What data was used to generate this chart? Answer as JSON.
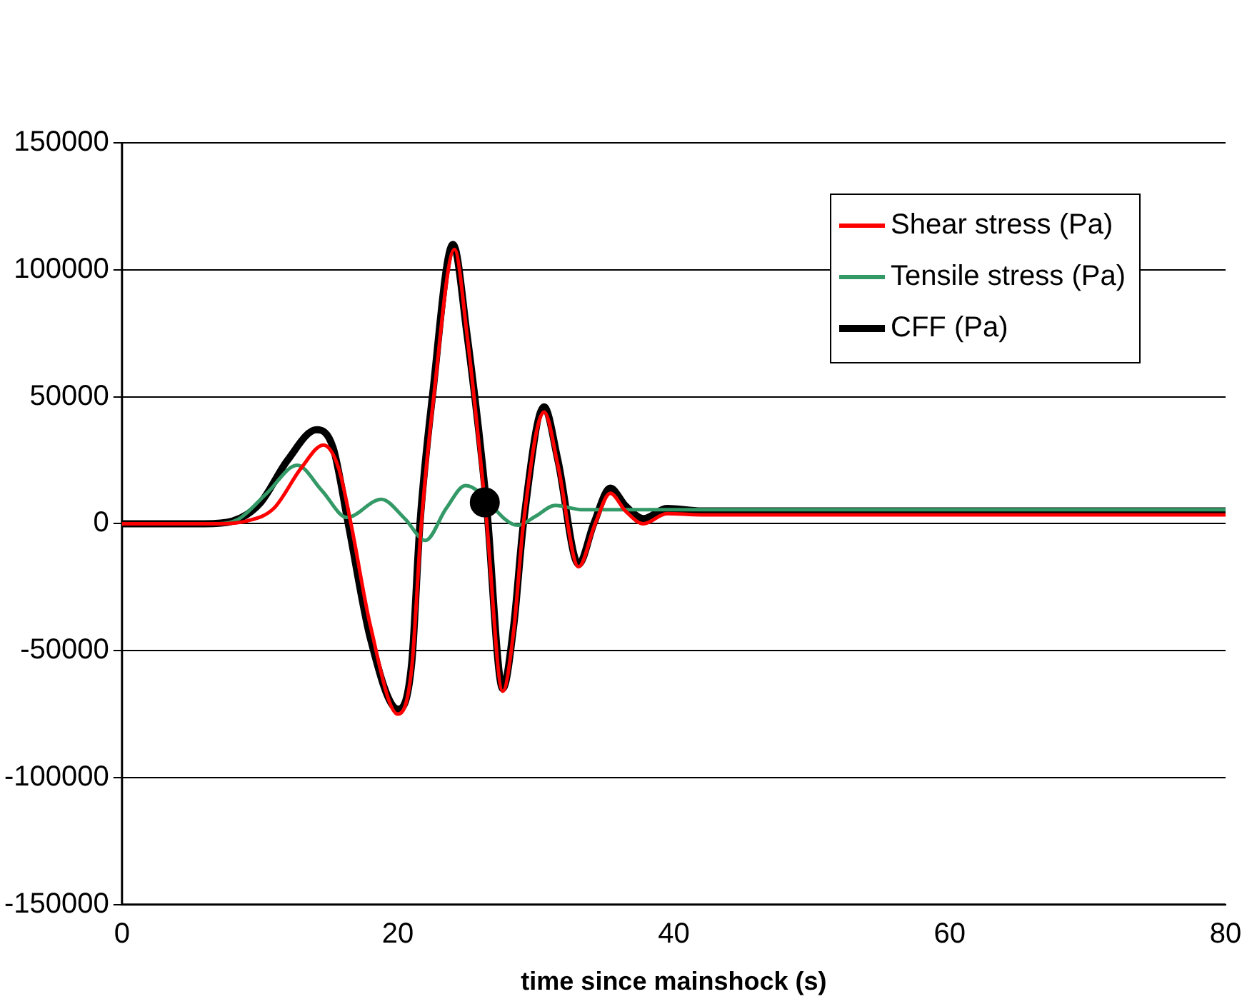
{
  "chart_data": {
    "type": "line",
    "xlabel": "time since mainshock (s)",
    "xlim": [
      0,
      80
    ],
    "xticks": [
      0,
      20,
      40,
      60,
      80
    ],
    "ylim": [
      -150000,
      150000
    ],
    "yticks": [
      -150000,
      -100000,
      -50000,
      0,
      50000,
      100000,
      150000
    ],
    "grid": "y",
    "legend": "top right",
    "marker": "none",
    "line_style": "solid",
    "series": [
      {
        "name": "Shear stress (Pa)",
        "color": "#ff0000",
        "x": [
          0,
          7,
          9,
          11,
          13,
          14.6,
          15.7,
          16.6,
          18,
          20,
          21,
          21.7,
          22.6,
          24.1,
          25,
          26.4,
          27.6,
          28.4,
          29.1,
          30.6,
          31.6,
          33.1,
          34.3,
          35.4,
          36.5,
          37.8,
          39.5,
          42,
          80
        ],
        "values": [
          0,
          0,
          1000,
          6000,
          22000,
          31000,
          22000,
          0,
          -40000,
          -75000,
          -57000,
          0,
          50000,
          108000,
          75000,
          3000,
          -66000,
          -42000,
          0,
          44000,
          23000,
          -17000,
          0,
          12000,
          5000,
          0,
          4000,
          3500,
          3500
        ]
      },
      {
        "name": "Tensile stress (Pa)",
        "color": "#339966",
        "x": [
          0,
          7,
          8.5,
          10.5,
          12.7,
          14.5,
          16.3,
          18.8,
          20.5,
          22,
          23.5,
          24.9,
          26.3,
          28.7,
          30,
          31.4,
          33.4,
          80
        ],
        "values": [
          0,
          0,
          2000,
          12000,
          23000,
          13000,
          2500,
          9600,
          2000,
          -6600,
          6000,
          15000,
          null,
          -600,
          3000,
          7200,
          5500,
          5500
        ]
      },
      {
        "name": "CFF (Pa)",
        "color": "#000000",
        "x": [
          0,
          6,
          8,
          10,
          12,
          14.1,
          15.3,
          16.4,
          18,
          20,
          21,
          21.6,
          22.5,
          24,
          25,
          26.4,
          27.6,
          28.4,
          29.1,
          30.6,
          31.6,
          33.1,
          34.2,
          35.4,
          36.5,
          37.8,
          39.5,
          42,
          80
        ],
        "values": [
          0,
          0,
          1000,
          8000,
          25000,
          37000,
          30000,
          0,
          -45000,
          -73000,
          -55000,
          0,
          50000,
          110000,
          75000,
          9000,
          -65000,
          -40000,
          0,
          46000,
          25000,
          -16000,
          0,
          14000,
          7000,
          2000,
          6000,
          5000,
          5000
        ]
      },
      {
        "type": "scatter",
        "marker": "circle",
        "color": "#000000",
        "x": [
          26.3
        ],
        "values": [
          8400
        ]
      }
    ]
  }
}
